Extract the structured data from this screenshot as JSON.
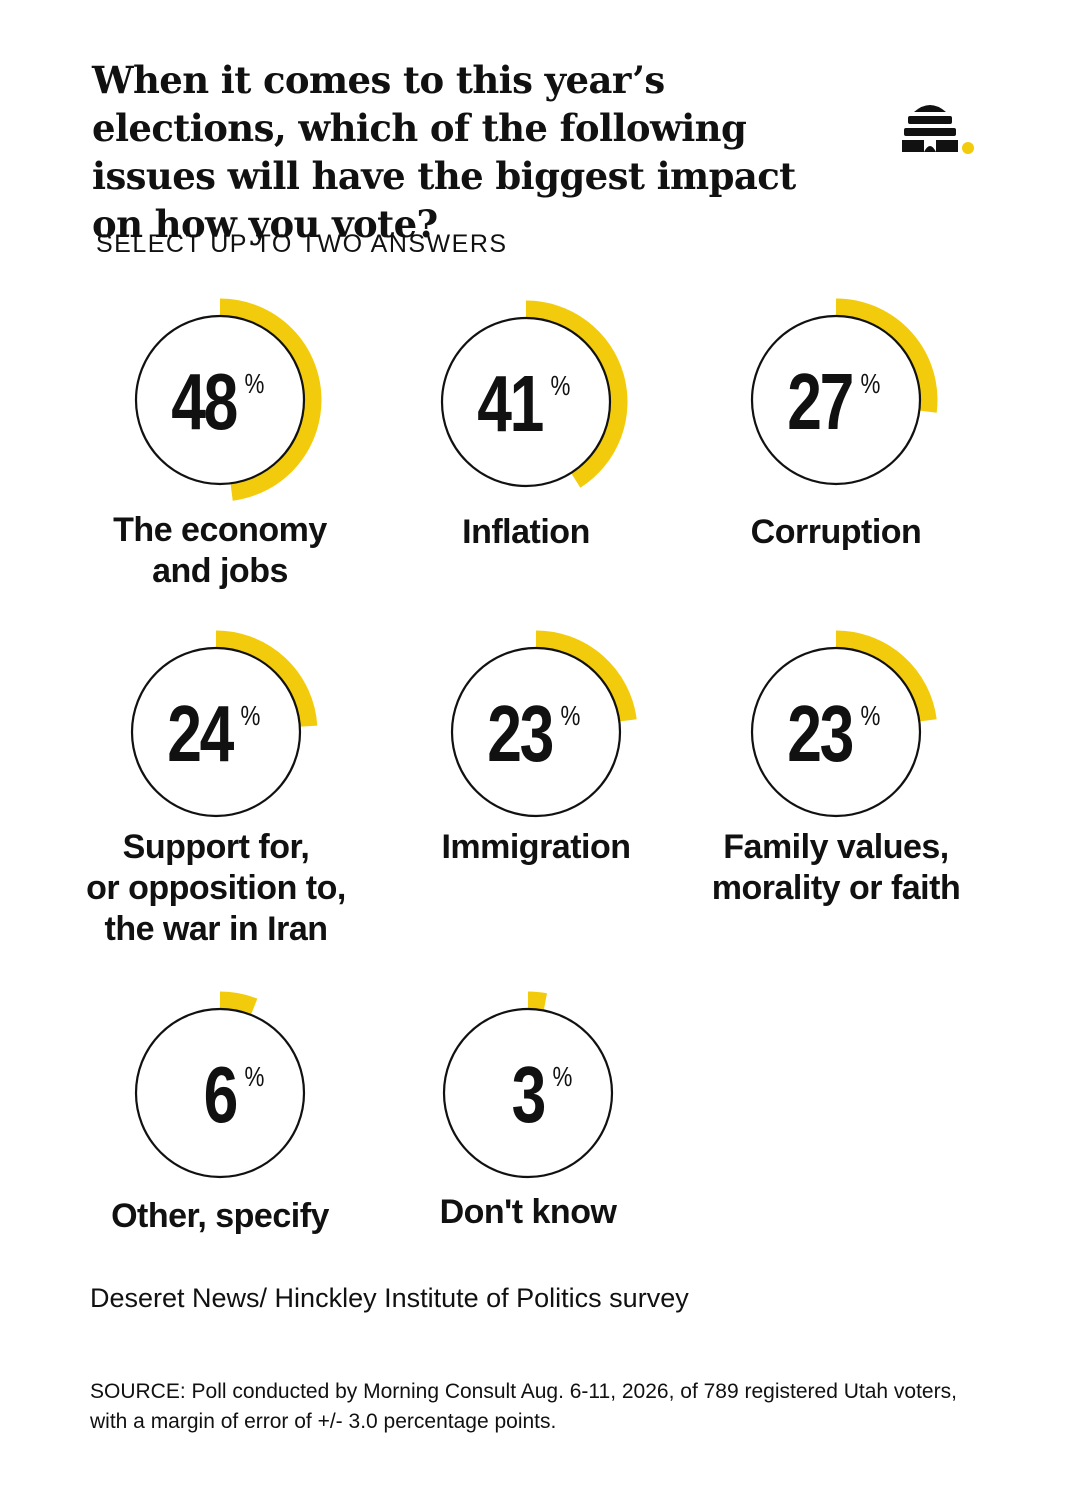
{
  "header": {
    "title": "When it comes to this year’s elections, which of the following issues will have the biggest impact on how you vote?",
    "subtitle": "SELECT UP TO TWO ANSWERS"
  },
  "logo": {
    "icon": "beehive-icon",
    "colors": {
      "hive": "#111111",
      "dot": "#F2CC0C"
    }
  },
  "colors": {
    "accent": "#F2CC0C",
    "ring": "#111111",
    "text": "#111111"
  },
  "chart_data": {
    "type": "radial",
    "title": "When it comes to this year’s elections, which of the following issues will have the biggest impact on how you vote?",
    "subtitle": "SELECT UP TO TWO ANSWERS",
    "unit": "%",
    "categories": [
      "The economy and jobs",
      "Inflation",
      "Corruption",
      "Support for, or opposition to, the war in Iran",
      "Immigration",
      "Family values, morality or faith",
      "Other, specify",
      "Don't know"
    ],
    "values": [
      48,
      41,
      27,
      24,
      23,
      23,
      6,
      3
    ],
    "value_labels": [
      "48",
      "41",
      "27",
      "24",
      "23",
      "23",
      "6",
      "3"
    ],
    "label_lines": [
      [
        "The economy",
        "and jobs"
      ],
      [
        "Inflation"
      ],
      [
        "Corruption"
      ],
      [
        "Support for,",
        "or opposition to,",
        "the war in Iran"
      ],
      [
        "Immigration"
      ],
      [
        "Family values,",
        "morality or faith"
      ],
      [
        "Other, specify"
      ],
      [
        "Don't know"
      ]
    ],
    "scale_max": 100
  },
  "footer": {
    "source_title": "Deseret News/ Hinckley Institute of Politics survey",
    "source_note": "SOURCE: Poll conducted by Morning Consult Aug. 6-11, 2026, of 789 registered Utah voters, with a margin of error of +/- 3.0 percentage points."
  }
}
